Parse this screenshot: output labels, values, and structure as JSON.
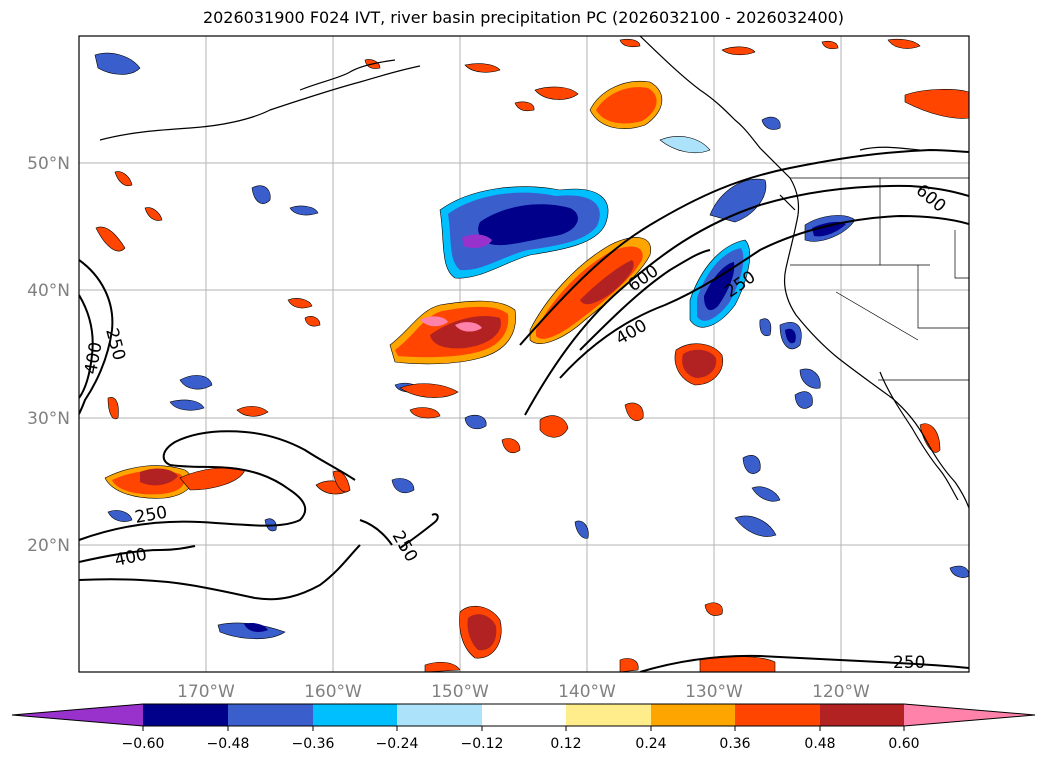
{
  "title": "2026031900 F024 IVT, river basin precipitation PC (2026032100 - 2026032400)",
  "colors": {
    "neg": [
      "#9932CC",
      "#00008B",
      "#3A5FCD",
      "#00BFFF",
      "#ADE3FA"
    ],
    "neutral": "#FFFFFF",
    "pos": [
      "#FFEC8B",
      "#FFA500",
      "#FF4500",
      "#B22222",
      "#FF82AB"
    ]
  },
  "axes": {
    "lat_labels": [
      "50°N",
      "40°N",
      "30°N",
      "20°N"
    ],
    "lon_labels": [
      "170°W",
      "160°W",
      "150°W",
      "140°W",
      "130°W",
      "120°W"
    ]
  },
  "chart_data": {
    "type": "heatmap",
    "title": "2026031900 F024 IVT, river basin precipitation PC (2026032100 - 2026032400)",
    "lon_range": [
      -180,
      -110
    ],
    "lat_range": [
      10,
      60
    ],
    "colorbar_ticks": [
      "−0.60",
      "−0.48",
      "−0.36",
      "−0.24",
      "−0.12",
      "0.12",
      "0.24",
      "0.36",
      "0.48",
      "0.60"
    ],
    "colorbar_levels": [
      -0.6,
      -0.48,
      -0.36,
      -0.24,
      -0.12,
      0.12,
      0.24,
      0.36,
      0.48,
      0.6
    ],
    "ivt_contour_labels": [
      "250",
      "400",
      "600",
      "250",
      "400",
      "250",
      "400",
      "250",
      "250",
      "400",
      "250",
      "400",
      "600",
      "250"
    ]
  }
}
